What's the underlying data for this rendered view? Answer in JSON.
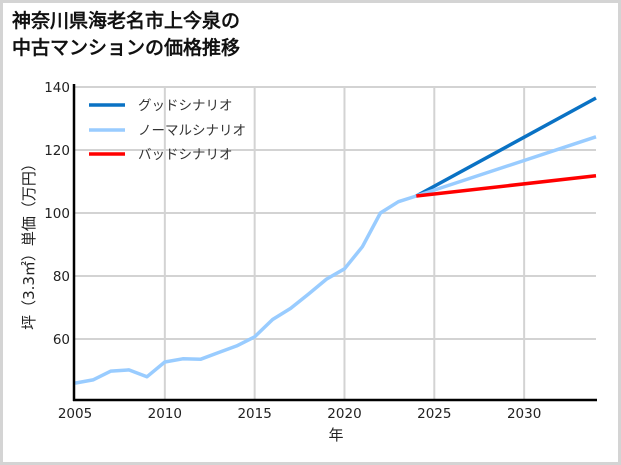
{
  "title": {
    "line1": "神奈川県海老名市上今泉の",
    "line2": "中古マンションの価格推移"
  },
  "chart_data": {
    "type": "line",
    "title": "神奈川県海老名市上今泉の中古マンションの価格推移",
    "xlabel": "年",
    "ylabel": "坪（3.3㎡）単価（万円）",
    "xlim": [
      2005,
      2034
    ],
    "ylim": [
      41,
      140
    ],
    "xticks": [
      2005,
      2010,
      2015,
      2020,
      2025,
      2030
    ],
    "yticks": [
      60,
      80,
      100,
      120,
      140
    ],
    "grid": true,
    "legend_position": "upper left",
    "series": [
      {
        "name": "ノーマルシナリオ",
        "role": "historical",
        "color": "#99ccff",
        "x": [
          2005,
          2006,
          2007,
          2008,
          2009,
          2010,
          2011,
          2012,
          2013,
          2014,
          2015,
          2016,
          2017,
          2018,
          2019,
          2020,
          2021,
          2022,
          2023,
          2024
        ],
        "y": [
          46.0,
          47.0,
          49.8,
          50.2,
          48.0,
          52.7,
          53.7,
          53.6,
          55.7,
          57.8,
          60.7,
          66.2,
          69.7,
          74.3,
          79.0,
          82.3,
          89.3,
          100.0,
          103.6,
          105.4
        ]
      },
      {
        "name": "グッドシナリオ",
        "color": "#0a72c4",
        "x": [
          2024,
          2034
        ],
        "y": [
          105.4,
          136.5
        ]
      },
      {
        "name": "ノーマルシナリオ",
        "color": "#99ccff",
        "x": [
          2024,
          2034
        ],
        "y": [
          105.4,
          124.2
        ]
      },
      {
        "name": "バッドシナリオ",
        "color": "#ff0000",
        "x": [
          2024,
          2034
        ],
        "y": [
          105.4,
          111.8
        ]
      }
    ],
    "legend": [
      {
        "label": "グッドシナリオ",
        "color": "#0a72c4"
      },
      {
        "label": "ノーマルシナリオ",
        "color": "#99ccff"
      },
      {
        "label": "バッドシナリオ",
        "color": "#ff0000"
      }
    ]
  }
}
